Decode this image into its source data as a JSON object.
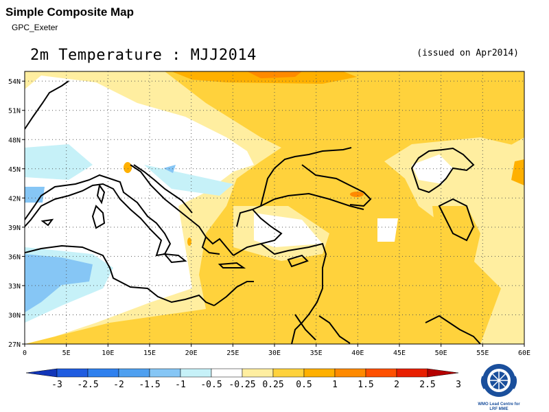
{
  "header": {
    "app_title": "Simple Composite Map",
    "app_subtitle": "GPC_Exeter",
    "map_title": "2m Temperature : MJJ2014",
    "issued": "(issued on Apr2014)"
  },
  "map": {
    "lat_labels": [
      "54N",
      "51N",
      "48N",
      "45N",
      "42N",
      "39N",
      "36N",
      "33N",
      "30N",
      "27N"
    ],
    "lon_labels": [
      "0",
      "5E",
      "10E",
      "15E",
      "20E",
      "25E",
      "30E",
      "35E",
      "40E",
      "45E",
      "50E",
      "55E",
      "60E"
    ],
    "lat_values": [
      54,
      51,
      48,
      45,
      42,
      39,
      36,
      33,
      30,
      27
    ],
    "lon_values": [
      0,
      5,
      10,
      15,
      20,
      25,
      30,
      35,
      40,
      45,
      50,
      55,
      60
    ],
    "extent": {
      "lon_min": 0,
      "lon_max": 60,
      "lat_min": 27,
      "lat_max": 55
    },
    "gridlines": "dotted",
    "variable": "2m Temperature anomaly"
  },
  "colorbar": {
    "labels": [
      "-3",
      "-2.5",
      "-2",
      "-1.5",
      "-1",
      "-0.5",
      "-0.25",
      "0.25",
      "0.5",
      "1",
      "1.5",
      "2",
      "2.5",
      "3"
    ],
    "colors": [
      "#1236b9",
      "#1f5ce0",
      "#2f80ee",
      "#4fa0f0",
      "#86c6f5",
      "#c6f1f8",
      "#ffffff",
      "#ffeea0",
      "#ffd23c",
      "#ffb000",
      "#ff8a00",
      "#ff5000",
      "#e81f00",
      "#b50000"
    ]
  },
  "logo": {
    "caption_line1": "WMO Lead Centre for",
    "caption_line2": "LRF MME"
  }
}
